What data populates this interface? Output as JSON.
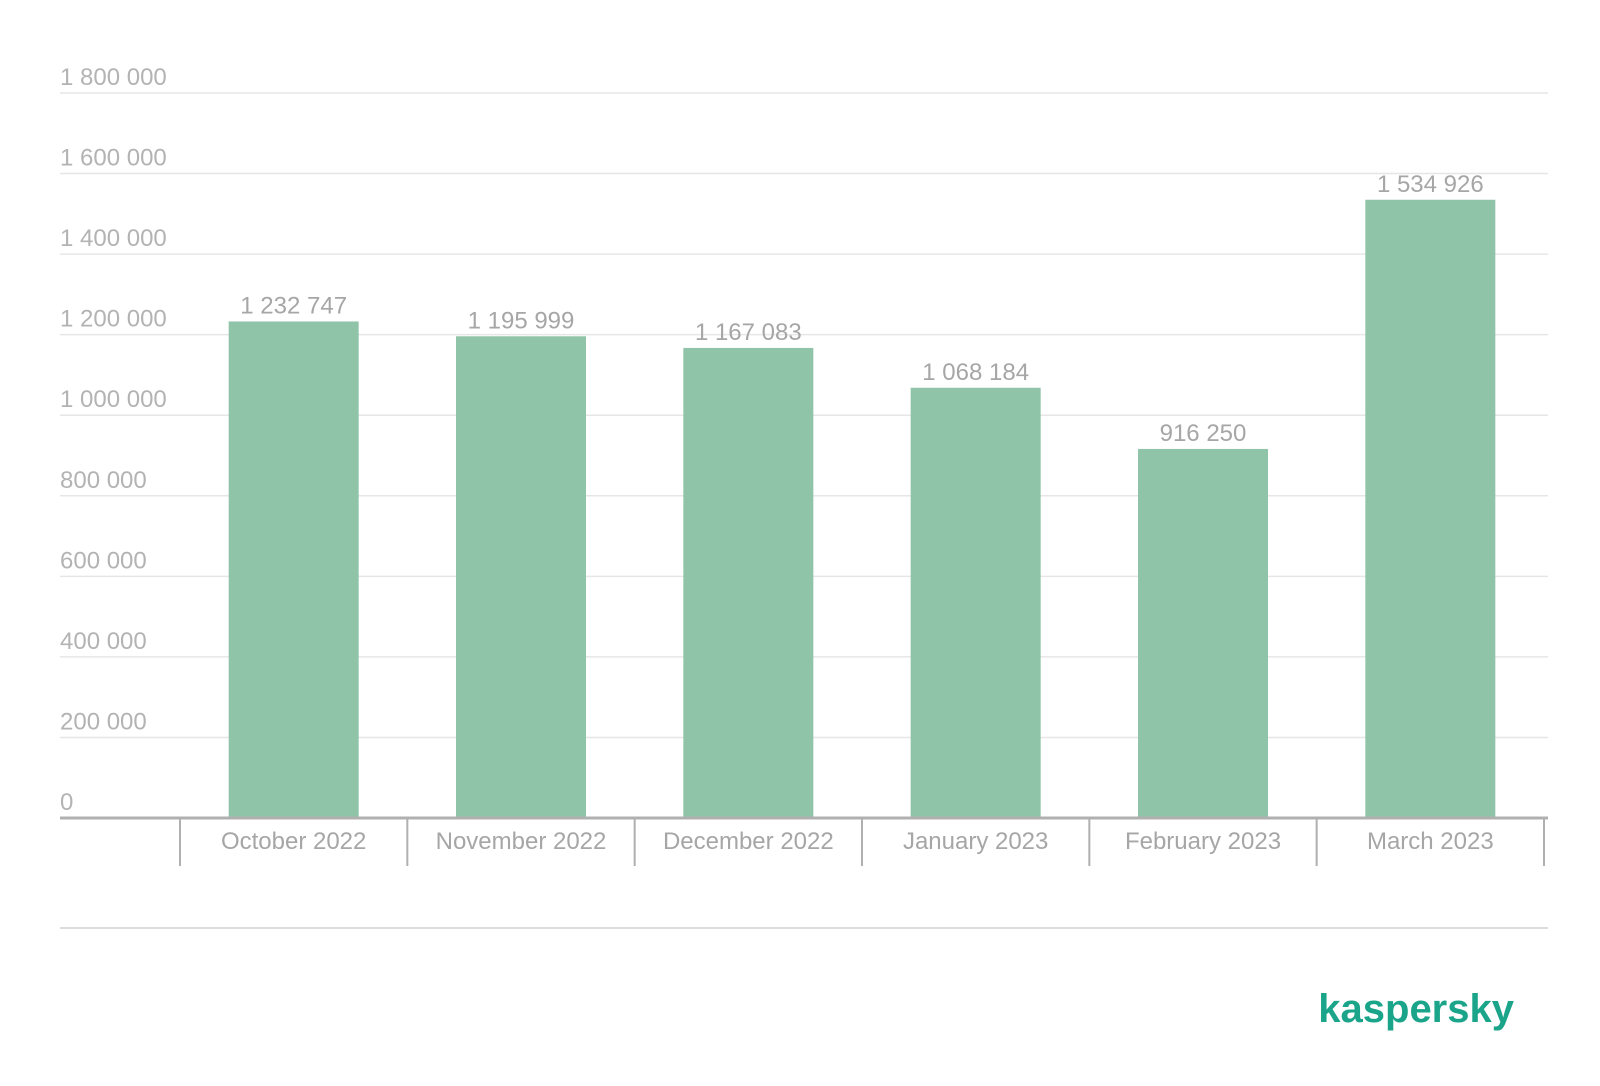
{
  "chart_data": {
    "type": "bar",
    "categories": [
      "October 2022",
      "November 2022",
      "December 2022",
      "January 2023",
      "February 2023",
      "March 2023"
    ],
    "values": [
      1232747,
      1195999,
      1167083,
      1068184,
      916250,
      1534926
    ],
    "value_labels": [
      "1 232 747",
      "1 195 999",
      "1 167 083",
      "1 068 184",
      "916 250",
      "1 534 926"
    ],
    "y_ticks": [
      0,
      200000,
      400000,
      600000,
      800000,
      1000000,
      1200000,
      1400000,
      1600000,
      1800000
    ],
    "y_tick_labels": [
      "0",
      "200 000",
      "400 000",
      "600 000",
      "800 000",
      "1 000 000",
      "1 200 000",
      "1 400 000",
      "1 600 000",
      "1 800 000"
    ],
    "ylim": [
      0,
      1800000
    ],
    "title": "",
    "xlabel": "",
    "ylabel": "",
    "grid": true,
    "legend": "none"
  },
  "colors": {
    "bar": "#8fc4a8",
    "grid": "#e6e6e6",
    "axis": "#b0b0b0",
    "tick_text": "#b3b3b3",
    "category_text": "#a6a6a6",
    "value_text": "#a6a6a6",
    "brand": "#1aa48a"
  },
  "brand": {
    "logo_text": "kaspersky"
  }
}
